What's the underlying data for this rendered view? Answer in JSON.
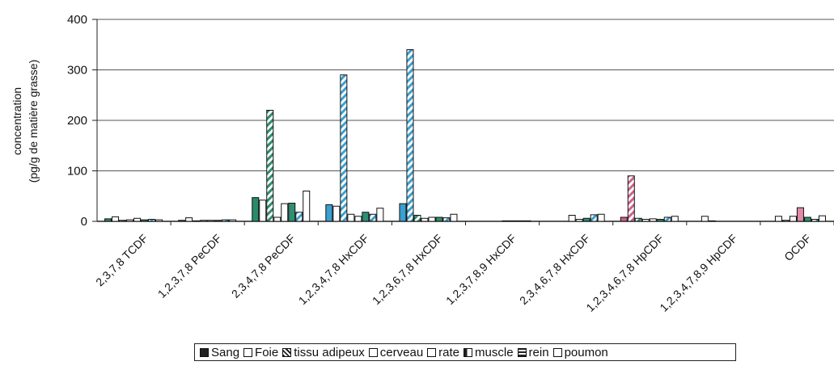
{
  "chart_data": {
    "type": "bar",
    "ylabel": [
      "concentration",
      "(pg/g de matière grasse)"
    ],
    "ylim": [
      0,
      400
    ],
    "yticks": [
      "0",
      "100",
      "200",
      "300",
      "400"
    ],
    "grid": true,
    "legend_position": "bottom",
    "categories": [
      "2,3,7,8 TCDF",
      "1,2,3,7,8 PeCDF",
      "2,3,4,7,8 PeCDF",
      "1,2,3,4,7,8 HxCDF",
      "1,2,3,6,7,8 HxCDF",
      "1,2,3,7,8,9 HxCDF",
      "2,3,4,6,7,8 HxCDF",
      "1,2,3,4,6,7,8 HpCDF",
      "1,2,3,4,7,8,9 HpCDF",
      "OCDF"
    ],
    "series": [
      {
        "name": "Sang",
        "color": "#2f7f6a",
        "values": [
          5,
          2,
          47,
          33,
          35,
          0,
          0,
          8,
          0,
          0
        ]
      },
      {
        "name": "Foie",
        "color": "#ffffff",
        "values": [
          9,
          7,
          42,
          30,
          340,
          0,
          0,
          90,
          10,
          10
        ]
      },
      {
        "name": "tissu adipeux",
        "color": "#2f9a70",
        "values": [
          2,
          1,
          220,
          290,
          12,
          0,
          0,
          6,
          1,
          2
        ]
      },
      {
        "name": "cerveau",
        "color": "#ffffff",
        "values": [
          3,
          2,
          8,
          14,
          6,
          0,
          12,
          4,
          0,
          10
        ]
      },
      {
        "name": "rate",
        "color": "#ffffff",
        "values": [
          6,
          2,
          35,
          10,
          8,
          1,
          4,
          5,
          0,
          27
        ]
      },
      {
        "name": "muscle",
        "color": "#3a8f78",
        "values": [
          3,
          2,
          36,
          18,
          8,
          1,
          6,
          4,
          0,
          8
        ]
      },
      {
        "name": "rein",
        "color": "#3aa0d0",
        "values": [
          4,
          3,
          18,
          14,
          7,
          1,
          13,
          8,
          0,
          4
        ]
      },
      {
        "name": "poumon",
        "color": "#ffffff",
        "values": [
          3,
          3,
          60,
          26,
          14,
          1,
          14,
          10,
          0,
          11
        ]
      }
    ]
  }
}
